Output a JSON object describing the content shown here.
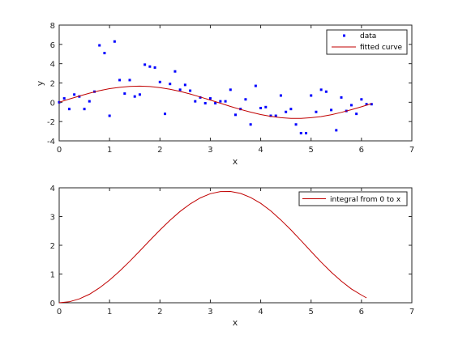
{
  "chart_data": [
    {
      "type": "scatter+line",
      "xlabel": "x",
      "ylabel": "y",
      "xlim": [
        0,
        7
      ],
      "ylim": [
        -4,
        8
      ],
      "xticks": [
        0,
        1,
        2,
        3,
        4,
        5,
        6,
        7
      ],
      "yticks": [
        -4,
        -2,
        0,
        2,
        4,
        6,
        8
      ],
      "legend": "top-right",
      "grid": false,
      "series": [
        {
          "name": "data",
          "kind": "markers",
          "color": "#0000ff",
          "x": [
            0.0,
            0.1,
            0.2,
            0.3,
            0.4,
            0.5,
            0.6,
            0.7,
            0.8,
            0.9,
            1.0,
            1.1,
            1.2,
            1.3,
            1.4,
            1.5,
            1.6,
            1.7,
            1.8,
            1.9,
            2.0,
            2.1,
            2.2,
            2.3,
            2.4,
            2.5,
            2.6,
            2.7,
            2.8,
            2.9,
            3.0,
            3.1,
            3.2,
            3.3,
            3.4,
            3.5,
            3.6,
            3.7,
            3.8,
            3.9,
            4.0,
            4.1,
            4.2,
            4.3,
            4.4,
            4.5,
            4.6,
            4.7,
            4.8,
            4.9,
            5.0,
            5.1,
            5.2,
            5.3,
            5.4,
            5.5,
            5.6,
            5.7,
            5.8,
            5.9,
            6.0,
            6.1,
            6.2
          ],
          "y": [
            0.0,
            0.4,
            -0.7,
            0.8,
            0.6,
            -0.7,
            0.1,
            1.1,
            5.9,
            5.1,
            -1.4,
            6.3,
            2.3,
            0.9,
            2.3,
            0.6,
            0.8,
            3.9,
            3.7,
            3.6,
            2.1,
            -1.2,
            1.9,
            3.2,
            1.3,
            1.8,
            1.2,
            0.1,
            0.5,
            -0.1,
            0.4,
            -0.1,
            0.1,
            0.1,
            1.3,
            -1.3,
            -0.7,
            0.3,
            -2.3,
            1.7,
            -0.6,
            -0.5,
            -1.4,
            -1.4,
            0.7,
            -1.0,
            -0.7,
            -2.3,
            -3.2,
            -3.2,
            0.7,
            -1.0,
            1.3,
            1.1,
            -0.8,
            -2.9,
            0.5,
            -0.9,
            -0.3,
            -1.2,
            0.3,
            -0.2,
            -0.2
          ]
        },
        {
          "name": "fitted curve",
          "kind": "line",
          "color": "#c00000",
          "x": [
            0.0,
            0.2,
            0.4,
            0.6,
            0.8,
            1.0,
            1.2,
            1.4,
            1.6,
            1.8,
            2.0,
            2.2,
            2.4,
            2.6,
            2.8,
            3.0,
            3.2,
            3.4,
            3.6,
            3.8,
            4.0,
            4.2,
            4.4,
            4.6,
            4.8,
            5.0,
            5.2,
            5.4,
            5.6,
            5.8,
            6.0,
            6.2
          ],
          "y": [
            0.0,
            0.33,
            0.65,
            0.94,
            1.2,
            1.41,
            1.55,
            1.64,
            1.67,
            1.63,
            1.52,
            1.35,
            1.13,
            0.86,
            0.55,
            0.23,
            -0.1,
            -0.43,
            -0.74,
            -1.02,
            -1.27,
            -1.46,
            -1.6,
            -1.67,
            -1.67,
            -1.6,
            -1.48,
            -1.29,
            -1.05,
            -0.77,
            -0.47,
            -0.14
          ]
        }
      ]
    },
    {
      "type": "line",
      "xlabel": "x",
      "ylabel": "",
      "xlim": [
        0,
        7
      ],
      "ylim": [
        0,
        4
      ],
      "xticks": [
        0,
        1,
        2,
        3,
        4,
        5,
        6,
        7
      ],
      "yticks": [
        0,
        1,
        2,
        3,
        4
      ],
      "legend": "top-right",
      "grid": false,
      "series": [
        {
          "name": "integral from 0 to x",
          "kind": "line",
          "color": "#c00000",
          "x": [
            0.0,
            0.2,
            0.4,
            0.6,
            0.8,
            1.0,
            1.2,
            1.4,
            1.6,
            1.8,
            2.0,
            2.2,
            2.4,
            2.6,
            2.8,
            3.0,
            3.2,
            3.4,
            3.6,
            3.8,
            4.0,
            4.2,
            4.4,
            4.6,
            4.8,
            5.0,
            5.2,
            5.4,
            5.6,
            5.8,
            6.0,
            6.1
          ],
          "y": [
            0.0,
            0.034,
            0.134,
            0.297,
            0.518,
            0.789,
            1.101,
            1.443,
            1.804,
            2.171,
            2.531,
            2.871,
            3.178,
            3.44,
            3.648,
            3.793,
            3.87,
            3.874,
            3.805,
            3.665,
            3.46,
            3.196,
            2.883,
            2.535,
            2.164,
            1.786,
            1.415,
            1.066,
            0.751,
            0.482,
            0.267,
            0.17
          ]
        }
      ]
    }
  ]
}
